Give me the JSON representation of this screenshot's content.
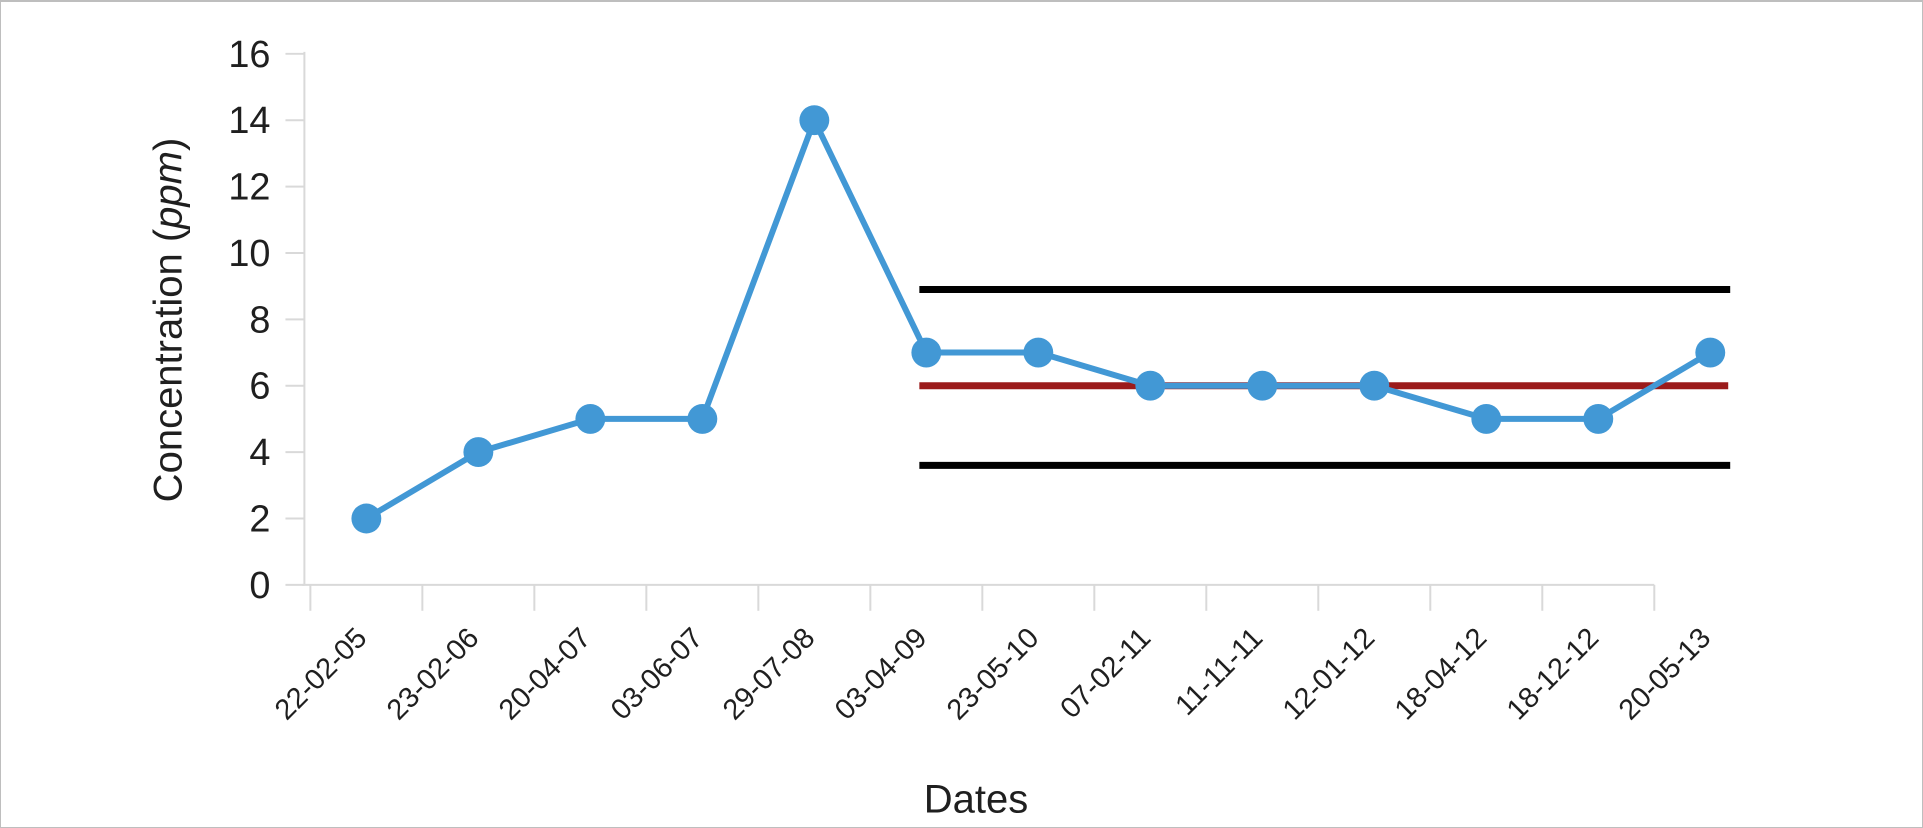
{
  "window": {
    "background": "#FFFFFF",
    "border_color": "#BEBEBE"
  },
  "chart_data": {
    "type": "line",
    "title": "",
    "xlabel": "Dates",
    "ylabel": "Concentration (ppm)",
    "ylabel_parts": {
      "prefix": "Concentration (",
      "unit": "ppm",
      "suffix": ")"
    },
    "categories": [
      "22-02-05",
      "23-02-06",
      "20-04-07",
      "03-06-07",
      "29-07-08",
      "03-04-09",
      "23-05-10",
      "07-02-11",
      "11-11-11",
      "12-01-12",
      "18-04-12",
      "18-12-12",
      "20-05-13"
    ],
    "values": [
      2,
      4,
      5,
      5,
      14,
      7,
      7,
      6,
      6,
      6,
      5,
      5,
      7
    ],
    "ylim": [
      0,
      16
    ],
    "ytick_step": 2,
    "y_ticks": [
      0,
      2,
      4,
      6,
      8,
      10,
      12,
      14,
      16
    ],
    "grid": false,
    "legend": "none",
    "limit_lines": {
      "upper": 8.9,
      "center": 6.0,
      "lower": 3.6,
      "start_category": "03-04-09",
      "start_index": 5,
      "end_category": "20-05-13"
    },
    "colors": {
      "series": "#4298D5",
      "center_line": "#9B1B1B",
      "limit_lines": "#000000",
      "axis": "#D9D9D9",
      "text": "#1F1F1F"
    },
    "marker": {
      "shape": "circle",
      "radius_px": 15
    }
  }
}
